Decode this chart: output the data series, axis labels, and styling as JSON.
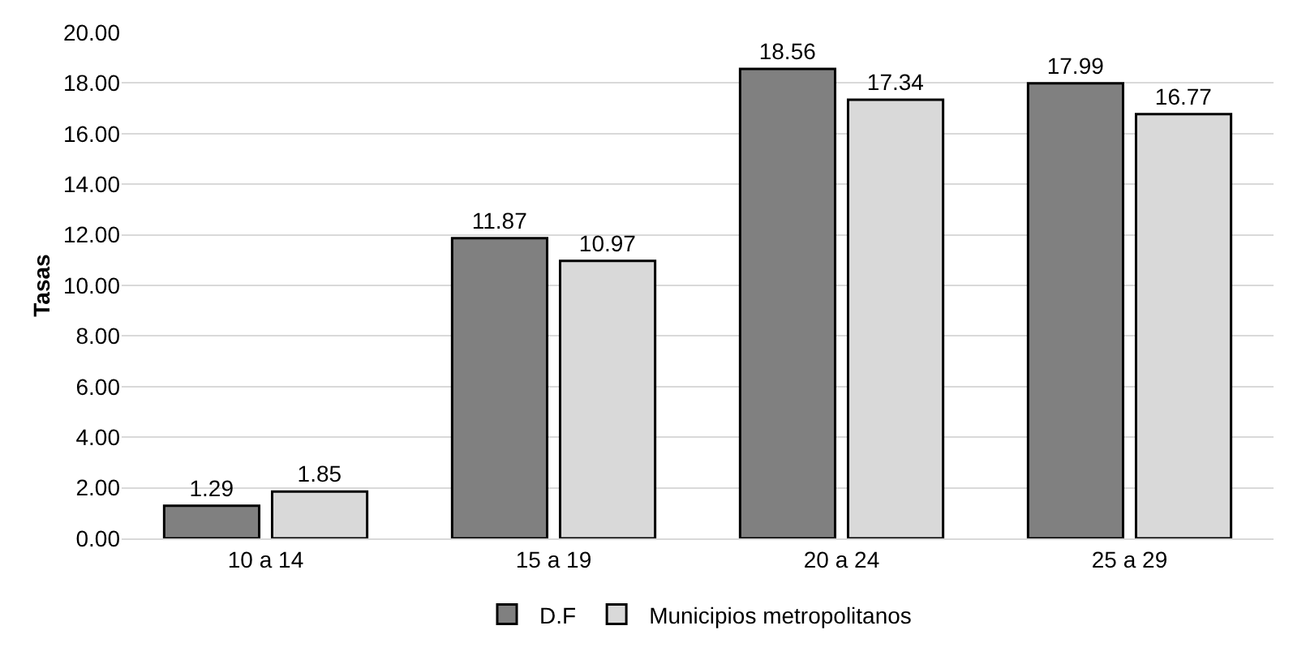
{
  "chart_data": {
    "type": "bar",
    "ylabel": "Tasas",
    "categories": [
      "10 a 14",
      "15 a 19",
      "20 a 24",
      "25 a 29"
    ],
    "series": [
      {
        "name": "D.F",
        "color": "#808080",
        "values": [
          1.29,
          11.87,
          18.56,
          17.99
        ]
      },
      {
        "name": "Municipios metropolitanos",
        "color": "#d9d9d9",
        "values": [
          1.85,
          10.97,
          17.34,
          16.77
        ]
      }
    ],
    "ylim": [
      0,
      20
    ],
    "yticks": [
      {
        "value": 0,
        "label": "0.00"
      },
      {
        "value": 2,
        "label": "2.00"
      },
      {
        "value": 4,
        "label": "4.00"
      },
      {
        "value": 6,
        "label": "6.00"
      },
      {
        "value": 8,
        "label": "8.00"
      },
      {
        "value": 10,
        "label": "10.00"
      },
      {
        "value": 12,
        "label": "12.00"
      },
      {
        "value": 14,
        "label": "14.00"
      },
      {
        "value": 16,
        "label": "16.00"
      },
      {
        "value": 18,
        "label": "18.00"
      },
      {
        "value": 20,
        "label": "20.00"
      }
    ],
    "data_labels": true,
    "grid": "y",
    "legend": "bottom"
  }
}
